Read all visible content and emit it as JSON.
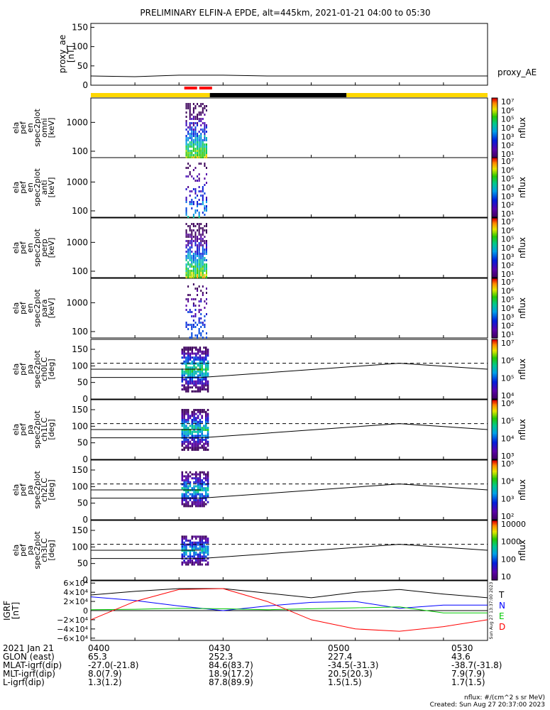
{
  "title": "PRELIMINARY ELFIN-A EPDE, alt=445km, 2021-01-21 04:00 to 05:30",
  "proxy_panel": {
    "ylabel": [
      "proxy_ae",
      "[nT]"
    ],
    "ticks": [
      "150",
      "100",
      "50",
      "0"
    ],
    "legend": "proxy_AE",
    "chart_data": {
      "type": "line",
      "ylim": [
        0,
        160
      ],
      "x": [
        "04:00",
        "04:10",
        "04:20",
        "04:30",
        "04:40",
        "04:50",
        "05:00",
        "05:10",
        "05:20",
        "05:30"
      ],
      "values": [
        24,
        22,
        26,
        26,
        24,
        24,
        24,
        24,
        24,
        24
      ]
    }
  },
  "colors": {
    "yellow": "#ffd700",
    "black": "#000000",
    "red": "#ff0000",
    "blue": "#0000ff",
    "green": "#00c800"
  },
  "energy_panels": [
    {
      "ylabel": [
        "ela",
        "pef",
        "en",
        "spec2plot",
        "omni",
        "[keV]"
      ],
      "ticks": [
        "1000",
        "100"
      ],
      "cb_ticks": [
        "10⁷",
        "10⁶",
        "10⁵",
        "10⁴",
        "10³",
        "10²",
        "10¹"
      ],
      "cb_label": "nflux"
    },
    {
      "ylabel": [
        "ela",
        "pef",
        "en",
        "spec2plot",
        "anti",
        "[keV]"
      ],
      "ticks": [
        "1000",
        "100"
      ],
      "cb_ticks": [
        "10⁷",
        "10⁶",
        "10⁵",
        "10⁴",
        "10³",
        "10²",
        "10¹"
      ],
      "cb_label": "nflux"
    },
    {
      "ylabel": [
        "ela",
        "pef",
        "en",
        "spec2plot",
        "perp",
        "[keV]"
      ],
      "ticks": [
        "1000",
        "100"
      ],
      "cb_ticks": [
        "10⁷",
        "10⁶",
        "10⁵",
        "10⁴",
        "10³",
        "10²",
        "10¹"
      ],
      "cb_label": "nflux"
    },
    {
      "ylabel": [
        "ela",
        "pef",
        "en",
        "spec2plot",
        "para",
        "[keV]"
      ],
      "ticks": [
        "1000",
        "100"
      ],
      "cb_ticks": [
        "10⁷",
        "10⁶",
        "10⁵",
        "10⁴",
        "10³",
        "10²",
        "10¹"
      ],
      "cb_label": "nflux"
    }
  ],
  "pa_panels": [
    {
      "ylabel": [
        "ela",
        "pef",
        "pa",
        "spec2plot",
        "ch0LC",
        "[deg]"
      ],
      "ticks": [
        "150",
        "100",
        "50",
        "0"
      ],
      "cb_ticks": [
        "10⁷",
        "10⁶",
        "10⁵",
        "10⁴"
      ],
      "cb_label": "nflux"
    },
    {
      "ylabel": [
        "ela",
        "pef",
        "pa",
        "spec2plot",
        "ch1LC",
        "[deg]"
      ],
      "ticks": [
        "150",
        "100",
        "50",
        "0"
      ],
      "cb_ticks": [
        "10⁶",
        "10⁵",
        "10⁴",
        "10³"
      ],
      "cb_label": "nflux"
    },
    {
      "ylabel": [
        "ela",
        "pef",
        "pa",
        "spec2plot",
        "ch2LC",
        "[deg]"
      ],
      "ticks": [
        "150",
        "100",
        "50",
        "0"
      ],
      "cb_ticks": [
        "10⁵",
        "10⁴",
        "10³",
        "10²"
      ],
      "cb_label": "nflux"
    },
    {
      "ylabel": [
        "ela",
        "pef",
        "pa",
        "spec2plot",
        "ch3LC",
        "[deg]"
      ],
      "ticks": [
        "150",
        "100",
        "50",
        "0"
      ],
      "cb_ticks": [
        "10000",
        "1000",
        "100",
        "10"
      ],
      "cb_label": "nflux"
    }
  ],
  "igrf_panel": {
    "ylabel": [
      "IGRF",
      "[nT]"
    ],
    "ticks": [
      "6×10⁴",
      "4×10⁴",
      "2×10⁴",
      "0",
      "−2×10⁴",
      "−4×10⁴",
      "−6×10⁴"
    ],
    "legend": [
      "T",
      "N",
      "E",
      "D"
    ],
    "side_note": "Sun Aug 27 13:37:00 2023",
    "chart_data": {
      "type": "line",
      "ylim": [
        -65000,
        65000
      ],
      "x_minutes": [
        0,
        10,
        20,
        30,
        40,
        50,
        60,
        70,
        80,
        90
      ],
      "series": [
        {
          "name": "T",
          "values": [
            34000,
            42000,
            48000,
            48000,
            38000,
            28000,
            40000,
            46000,
            36000,
            28000
          ]
        },
        {
          "name": "N",
          "values": [
            30000,
            22000,
            10000,
            0,
            10000,
            18000,
            20000,
            5000,
            12000,
            12000
          ]
        },
        {
          "name": "E",
          "values": [
            2000,
            3000,
            5000,
            4000,
            2000,
            4000,
            6000,
            8000,
            -5000,
            -5000
          ]
        },
        {
          "name": "D",
          "values": [
            -20000,
            20000,
            46000,
            48000,
            20000,
            -20000,
            -40000,
            -45000,
            -35000,
            -20000
          ]
        }
      ]
    }
  },
  "chart_data": {
    "type": "heatmap",
    "title": "PRELIMINARY ELFIN-A EPDE, alt=445km, 2021-01-21 04:00 to 05:30",
    "x_ticks": [
      "0400",
      "0430",
      "0500",
      "0530"
    ],
    "energy_ylim_keV": [
      60,
      7000
    ],
    "pa_ylim_deg": [
      0,
      180
    ],
    "burst_time_range": [
      "04:20",
      "04:25"
    ],
    "loss_cone_lines_deg": [
      65,
      90,
      108
    ],
    "proxy_ae": [
      24,
      22,
      26,
      26,
      24,
      24,
      24,
      24,
      24,
      24
    ]
  },
  "footer": {
    "rows": [
      [
        "2021 Jan 21",
        "0400",
        "0430",
        "0500",
        "0530"
      ],
      [
        "GLON (east)",
        "65.3",
        "252.3",
        "227.4",
        "43.6"
      ],
      [
        "MLAT-igrf(dip)",
        "-27.0(-21.8)",
        "84.6(83.7)",
        "-34.5(-31.3)",
        "-38.7(-31.8)"
      ],
      [
        "MLT-igrf(dip)",
        "8.0(7.9)",
        "18.9(17.2)",
        "20.5(20.3)",
        "7.9(7.9)"
      ],
      [
        "L-igrf(dip)",
        "1.3(1.2)",
        "87.8(89.9)",
        "1.5(1.5)",
        "1.7(1.5)"
      ]
    ],
    "units_note": "nflux: #/(cm^2 s sr MeV)",
    "created": "Created: Sun Aug 27 20:37:00 2023"
  }
}
